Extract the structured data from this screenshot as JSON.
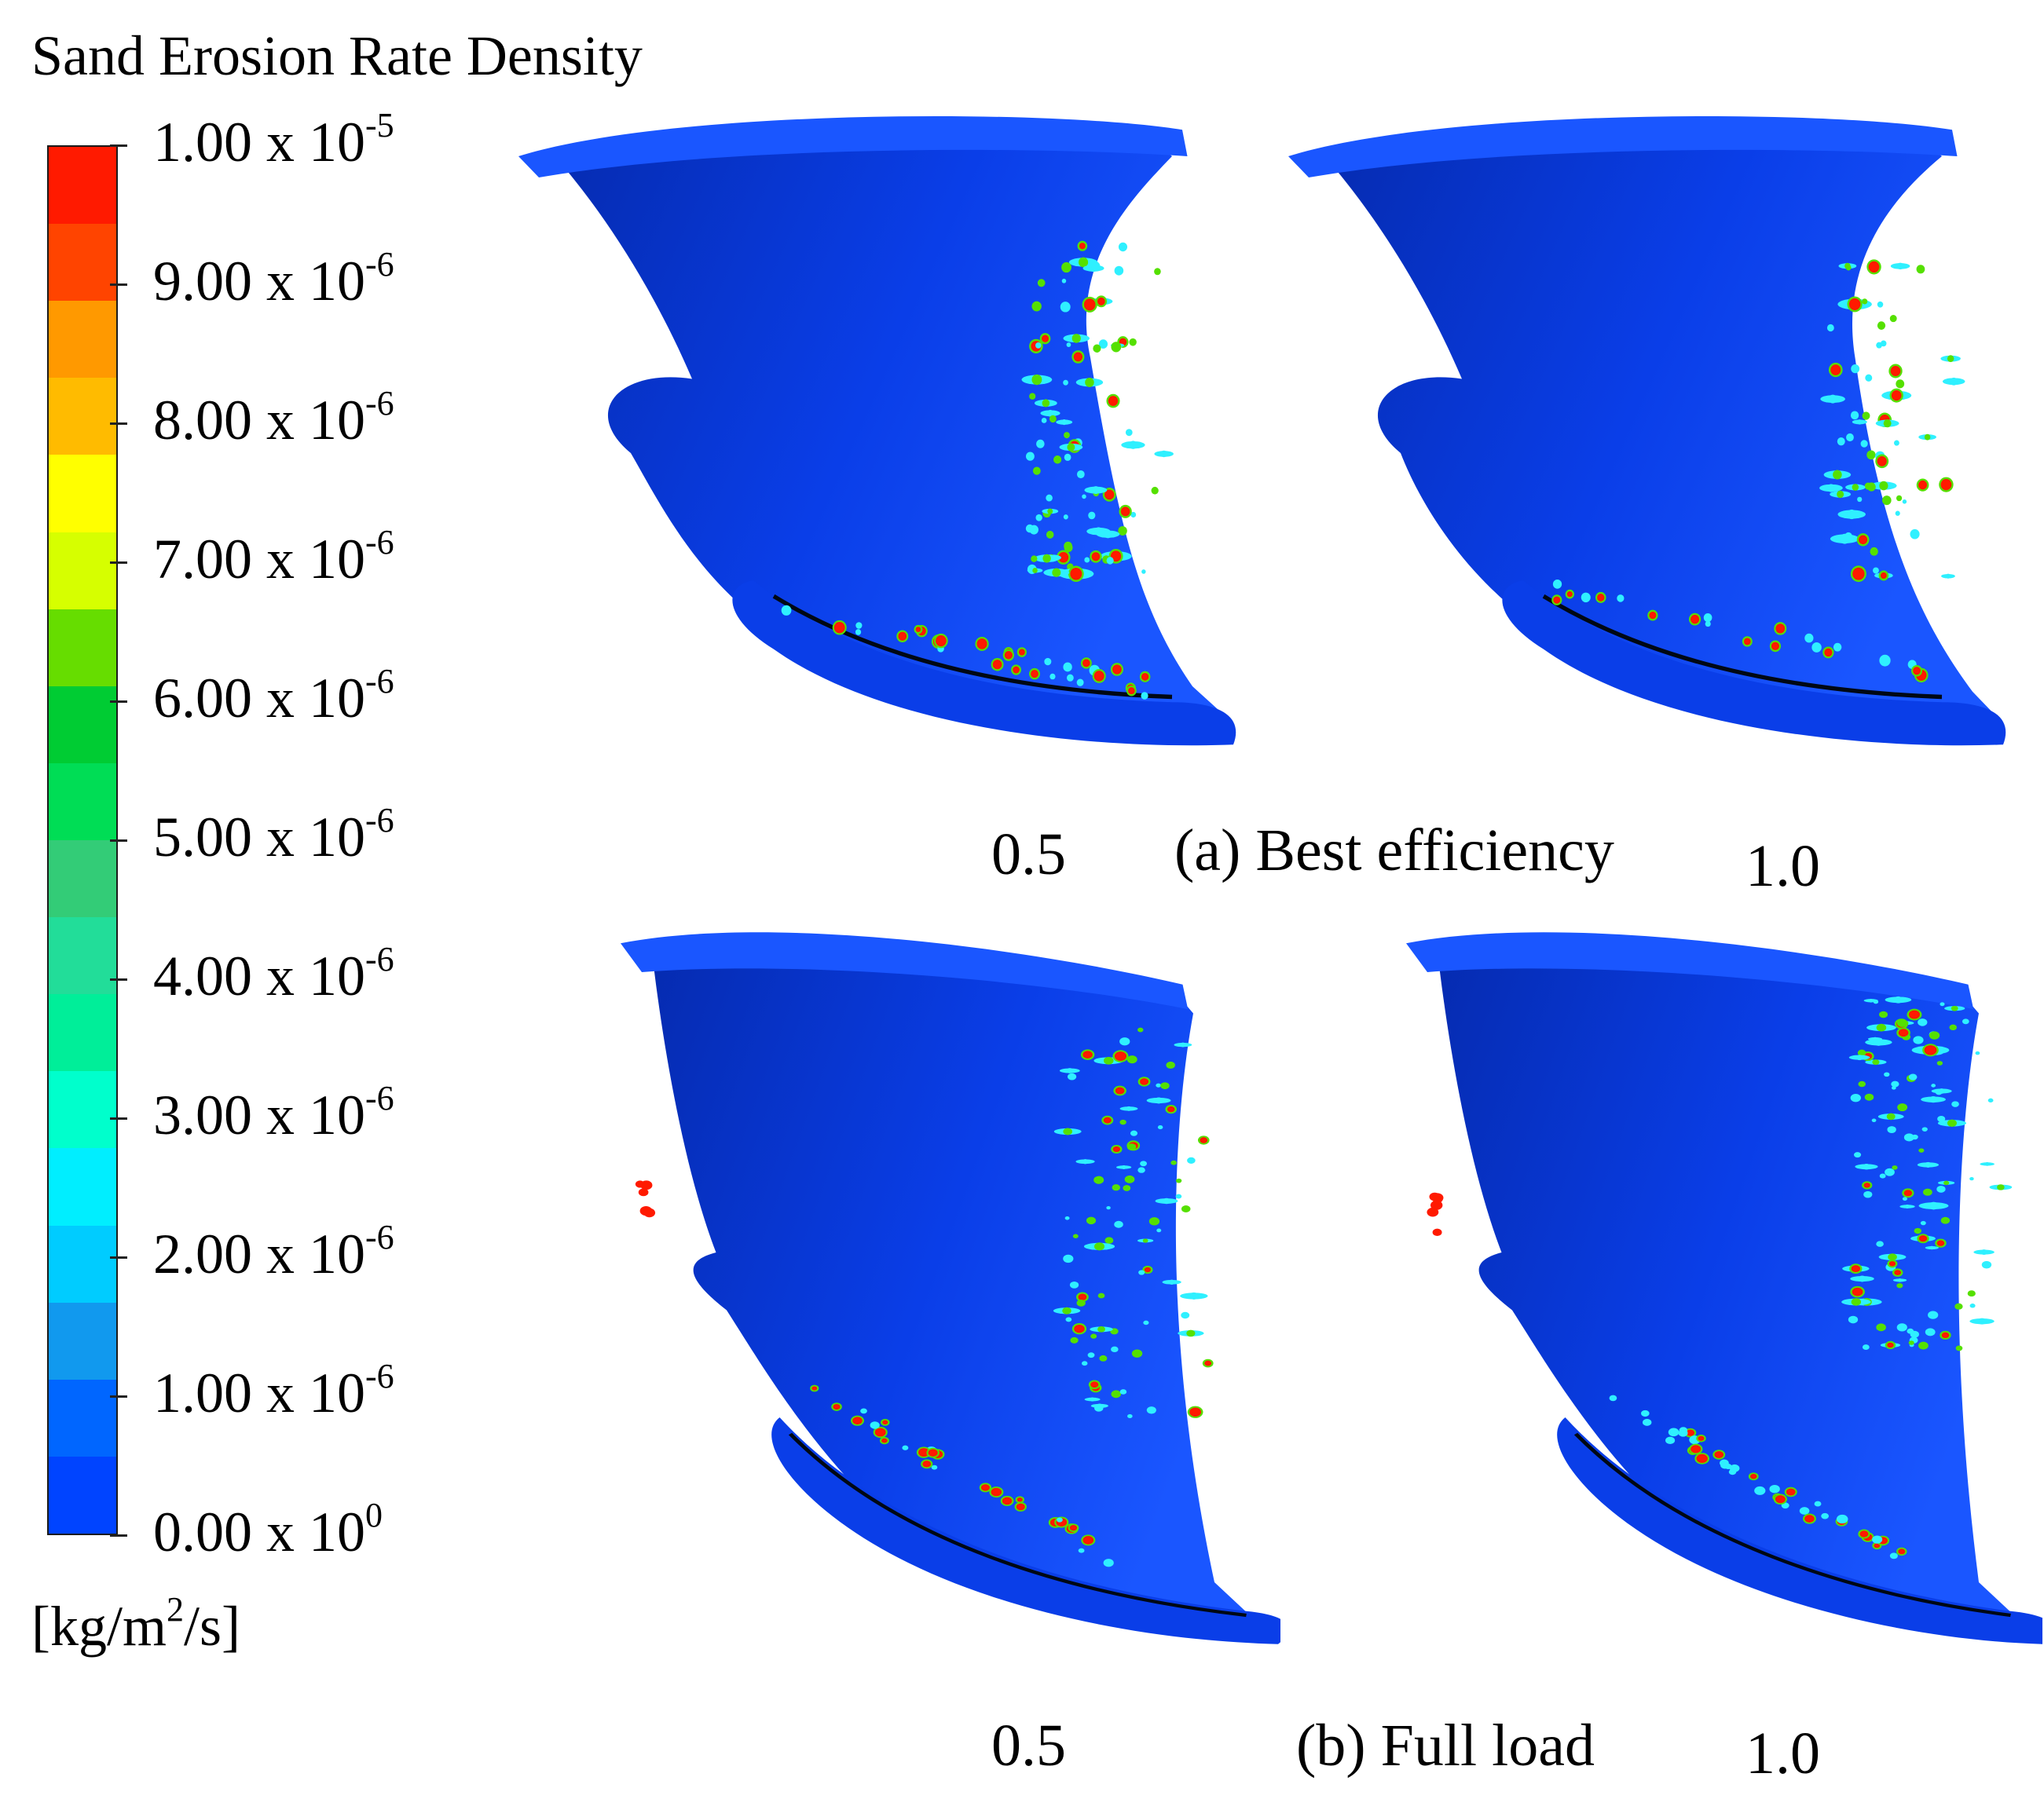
{
  "legend": {
    "title": "Sand Erosion Rate Density",
    "unit_base": "[kg/m",
    "unit_sup": "2",
    "unit_tail": "/s]",
    "ticks": [
      {
        "mantissa": "1.00 x 10",
        "exp": "-5"
      },
      {
        "mantissa": "9.00 x 10",
        "exp": "-6"
      },
      {
        "mantissa": "8.00 x 10",
        "exp": "-6"
      },
      {
        "mantissa": "7.00 x 10",
        "exp": "-6"
      },
      {
        "mantissa": "6.00 x 10",
        "exp": "-6"
      },
      {
        "mantissa": "5.00 x 10",
        "exp": "-6"
      },
      {
        "mantissa": "4.00 x 10",
        "exp": "-6"
      },
      {
        "mantissa": "3.00 x 10",
        "exp": "-6"
      },
      {
        "mantissa": "2.00 x 10",
        "exp": "-6"
      },
      {
        "mantissa": "1.00 x 10",
        "exp": "-6"
      },
      {
        "mantissa": "0.00 x 10",
        "exp": "0"
      }
    ],
    "band_colors": [
      "#ff1a00",
      "#ff4400",
      "#ff9900",
      "#ffbb00",
      "#ffff00",
      "#d6ff00",
      "#66dd00",
      "#00cc33",
      "#00dd55",
      "#33cc77",
      "#22dd99",
      "#00ee99",
      "#00ffcc",
      "#00eeff",
      "#00ccff",
      "#1199ee",
      "#0066ff",
      "#0044ff"
    ]
  },
  "colors": {
    "blade_base": "#0a3ee8",
    "blade_dark": "#052bb0",
    "blade_light": "#1a56ff",
    "hot": "#ff1a00",
    "warm": "#55e000",
    "cool": "#2ff0ff"
  },
  "captions": {
    "a": {
      "left_value": "0.5",
      "label": "(a) Best efficiency",
      "right_value": "1.0"
    },
    "b": {
      "left_value": "0.5",
      "label": "(b) Full load",
      "right_value": "1.0"
    }
  },
  "panels": [
    {
      "id": "a-0.5",
      "seed": 11,
      "density": "medium"
    },
    {
      "id": "a-1.0",
      "seed": 23,
      "density": "low"
    },
    {
      "id": "b-0.5",
      "seed": 37,
      "density": "medium"
    },
    {
      "id": "b-1.0",
      "seed": 51,
      "density": "high"
    }
  ]
}
